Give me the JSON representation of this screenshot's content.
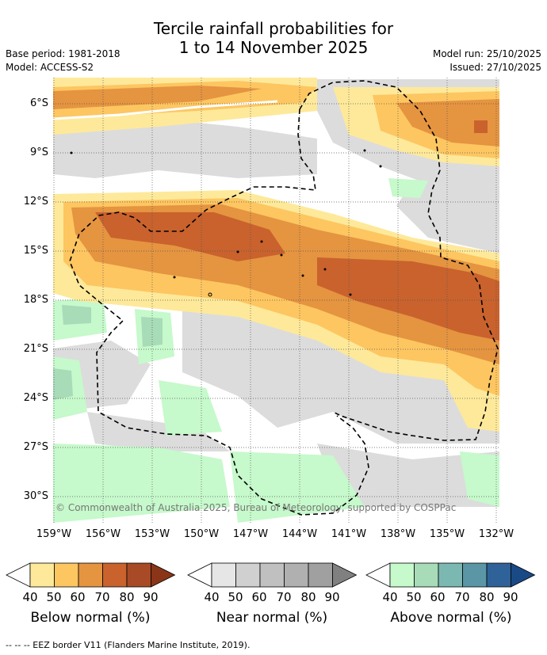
{
  "title_line1": "Tercile rainfall probabilities for",
  "title_line2": "1 to 14 November 2025",
  "base_period": "Base period: 1981-2018",
  "model": "Model: ACCESS-S2",
  "model_run": "Model run: 25/10/2025",
  "issued": "Issued: 27/10/2025",
  "credit": "© Commonwealth of Australia 2025, Bureau of Meteorology, supported by COSPPac",
  "footer": "-- -- -- EEZ border V11 (Flanders Marine Institute, 2019).",
  "latitudes": [
    "6°S",
    "9°S",
    "12°S",
    "15°S",
    "18°S",
    "21°S",
    "24°S",
    "27°S",
    "30°S"
  ],
  "longitudes": [
    "159°W",
    "156°W",
    "153°W",
    "150°W",
    "147°W",
    "144°W",
    "141°W",
    "138°W",
    "135°W",
    "132°W"
  ],
  "colorbars": [
    {
      "label": "Below normal (%)",
      "ticks": [
        "40",
        "50",
        "60",
        "70",
        "80",
        "90"
      ],
      "colors": [
        "#ffffff",
        "#fee99a",
        "#fdc661",
        "#e59440",
        "#c9622d",
        "#a84a25",
        "#8a3518"
      ]
    },
    {
      "label": "Near normal (%)",
      "ticks": [
        "40",
        "50",
        "60",
        "70",
        "80",
        "90"
      ],
      "colors": [
        "#ffffff",
        "#e6e6e6",
        "#d0d0d0",
        "#c0c0c0",
        "#b0b0b0",
        "#a0a0a0",
        "#808080"
      ]
    },
    {
      "label": "Above normal (%)",
      "ticks": [
        "40",
        "50",
        "60",
        "70",
        "80",
        "90"
      ],
      "colors": [
        "#ffffff",
        "#c6f9cb",
        "#a8dbb8",
        "#7cb8b2",
        "#5a96a6",
        "#2f6298",
        "#1a4a86"
      ]
    }
  ]
}
